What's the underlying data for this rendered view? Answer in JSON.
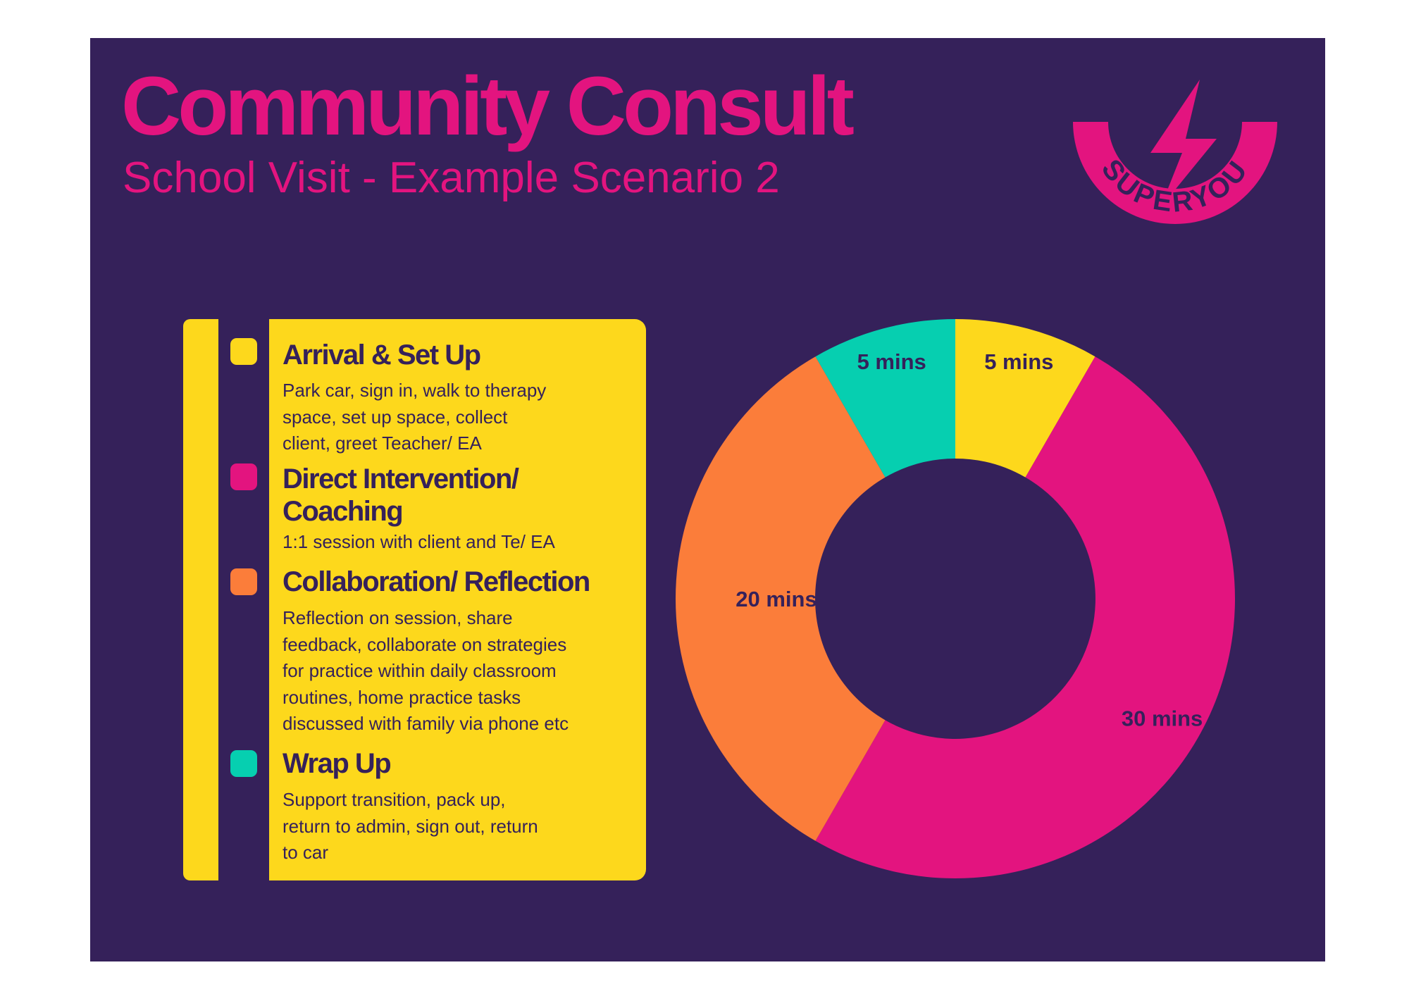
{
  "header": {
    "title": "Community Consult",
    "subtitle": "School Visit - Example Scenario 2"
  },
  "logo": {
    "text": "SUPERYOU",
    "icon": "lightning-bolt-icon",
    "color": "#e3147f"
  },
  "colors": {
    "background": "#35215a",
    "text": "#35215a",
    "legend_bg": "#fdd81c"
  },
  "legend": [
    {
      "title": "Arrival & Set Up",
      "desc": "Park car, sign in, walk to therapy\nspace, set up space, collect\nclient, greet Teacher/ EA",
      "color": "#fdd81c"
    },
    {
      "title": "Direct Intervention/\nCoaching",
      "desc": "1:1 session with client and Te/ EA",
      "color": "#e3147f"
    },
    {
      "title": "Collaboration/ Reflection",
      "desc": "Reflection on session, share\nfeedback, collaborate on strategies\nfor practice within daily classroom\nroutines, home practice tasks\ndiscussed with family via phone etc",
      "color": "#fb7d3a"
    },
    {
      "title": "Wrap Up",
      "desc": "Support transition, pack up,\nreturn to admin, sign out, return\nto car",
      "color": "#06cfb0"
    }
  ],
  "chart_data": {
    "type": "pie",
    "donut": true,
    "start": "top",
    "direction": "clockwise",
    "categories": [
      "Arrival & Set Up",
      "Direct Intervention/ Coaching",
      "Collaboration/ Reflection",
      "Wrap Up"
    ],
    "values": [
      5,
      30,
      20,
      5
    ],
    "unit": "mins",
    "labels": [
      "5 mins",
      "30 mins",
      "20 mins",
      "5 mins"
    ],
    "colors": [
      "#fdd81c",
      "#e3147f",
      "#fb7d3a",
      "#06cfb0"
    ]
  }
}
